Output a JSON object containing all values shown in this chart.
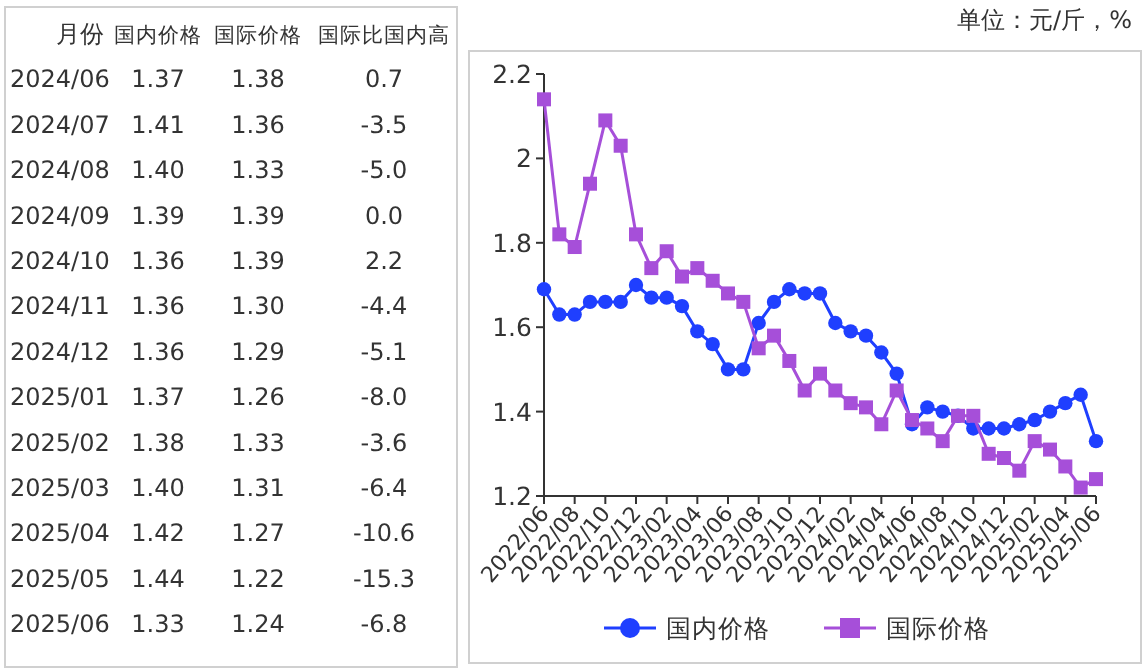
{
  "chart_data": [
    {
      "type": "other",
      "xlabel": "月份",
      "categories": [
        "2024/06",
        "2024/07",
        "2024/08",
        "2024/09",
        "2024/10",
        "2024/11",
        "2024/12",
        "2025/01",
        "2025/02",
        "2025/03",
        "2025/04",
        "2025/05",
        "2025/06"
      ],
      "series": [
        {
          "name": "国内价格",
          "values": [
            1.37,
            1.41,
            1.4,
            1.39,
            1.36,
            1.36,
            1.36,
            1.37,
            1.38,
            1.4,
            1.42,
            1.44,
            1.33
          ],
          "value_labels": [
            "1.37",
            "1.41",
            "1.40",
            "1.39",
            "1.36",
            "1.36",
            "1.36",
            "1.37",
            "1.38",
            "1.40",
            "1.42",
            "1.44",
            "1.33"
          ]
        },
        {
          "name": "国际价格",
          "values": [
            1.38,
            1.36,
            1.33,
            1.39,
            1.39,
            1.3,
            1.29,
            1.26,
            1.33,
            1.31,
            1.27,
            1.22,
            1.24
          ],
          "value_labels": [
            "1.38",
            "1.36",
            "1.33",
            "1.39",
            "1.39",
            "1.30",
            "1.29",
            "1.26",
            "1.33",
            "1.31",
            "1.27",
            "1.22",
            "1.24"
          ]
        },
        {
          "name": "国际比国内高",
          "values": [
            0.7,
            -3.5,
            -5.0,
            0.0,
            2.2,
            -4.4,
            -5.1,
            -8.0,
            -3.6,
            -6.4,
            -10.6,
            -15.3,
            -6.8
          ],
          "value_labels": [
            "0.7",
            "-3.5",
            "-5.0",
            "0.0",
            "2.2",
            "-4.4",
            "-5.1",
            "-8.0",
            "-3.6",
            "-6.4",
            "-10.6",
            "-15.3",
            "-6.8"
          ]
        }
      ]
    },
    {
      "type": "line",
      "annotations": [
        "单位：元/斤，%"
      ],
      "categories": [
        "2022/06",
        null,
        "2022/08",
        null,
        "2022/10",
        null,
        "2022/12",
        null,
        "2023/02",
        null,
        "2023/04",
        null,
        "2023/06",
        null,
        "2023/08",
        null,
        "2023/10",
        null,
        "2023/12",
        null,
        "2024/02",
        null,
        "2024/04",
        null,
        "2024/06",
        null,
        "2024/08",
        null,
        "2024/10",
        null,
        "2024/12",
        null,
        "2025/02",
        null,
        "2025/04",
        null,
        "2025/06"
      ],
      "ylim": [
        1.2,
        2.2
      ],
      "yticks": [
        1.2,
        1.4,
        1.6,
        1.8,
        2,
        2.2
      ],
      "legend": "bottom",
      "series": [
        {
          "name": "国内价格",
          "color": "#1f3fff",
          "marker": "circle",
          "values": [
            1.69,
            1.63,
            1.63,
            1.66,
            1.66,
            1.66,
            1.7,
            1.67,
            1.67,
            1.65,
            1.59,
            1.56,
            1.5,
            1.5,
            1.61,
            1.66,
            1.69,
            1.68,
            1.68,
            1.61,
            1.59,
            1.58,
            1.54,
            1.49,
            1.37,
            1.41,
            1.4,
            1.39,
            1.36,
            1.36,
            1.36,
            1.37,
            1.38,
            1.4,
            1.42,
            1.44,
            1.33
          ]
        },
        {
          "name": "国际价格",
          "color": "#a64fd9",
          "marker": "square",
          "values": [
            2.14,
            1.82,
            1.79,
            1.94,
            2.09,
            2.03,
            1.82,
            1.74,
            1.78,
            1.72,
            1.74,
            1.71,
            1.68,
            1.66,
            1.55,
            1.58,
            1.52,
            1.45,
            1.49,
            1.45,
            1.42,
            1.41,
            1.37,
            1.45,
            1.38,
            1.36,
            1.33,
            1.39,
            1.39,
            1.3,
            1.29,
            1.26,
            1.33,
            1.31,
            1.27,
            1.22,
            1.24
          ]
        }
      ]
    }
  ]
}
